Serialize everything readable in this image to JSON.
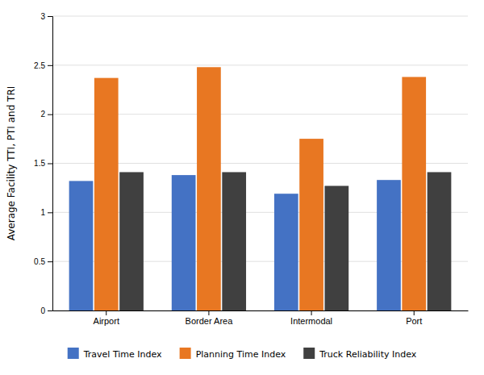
{
  "chart_data": {
    "type": "bar",
    "categories": [
      "Airport",
      "Border Area",
      "Intermodal",
      "Port"
    ],
    "series": [
      {
        "name": "Travel Time Index",
        "color": "#4472C4",
        "values": [
          1.32,
          1.38,
          1.19,
          1.33
        ]
      },
      {
        "name": "Planning Time Index",
        "color": "#E87722",
        "values": [
          2.37,
          2.48,
          1.75,
          2.38
        ]
      },
      {
        "name": "Truck Reliability Index",
        "color": "#404040",
        "values": [
          1.41,
          1.41,
          1.27,
          1.41
        ]
      }
    ],
    "ylabel": "Average Facility TTI, PTI and TRI",
    "ylim": [
      0,
      3
    ],
    "yticks": [
      0,
      0.5,
      1,
      1.5,
      2,
      2.5,
      3
    ],
    "grid": true,
    "legend": "bottom"
  }
}
